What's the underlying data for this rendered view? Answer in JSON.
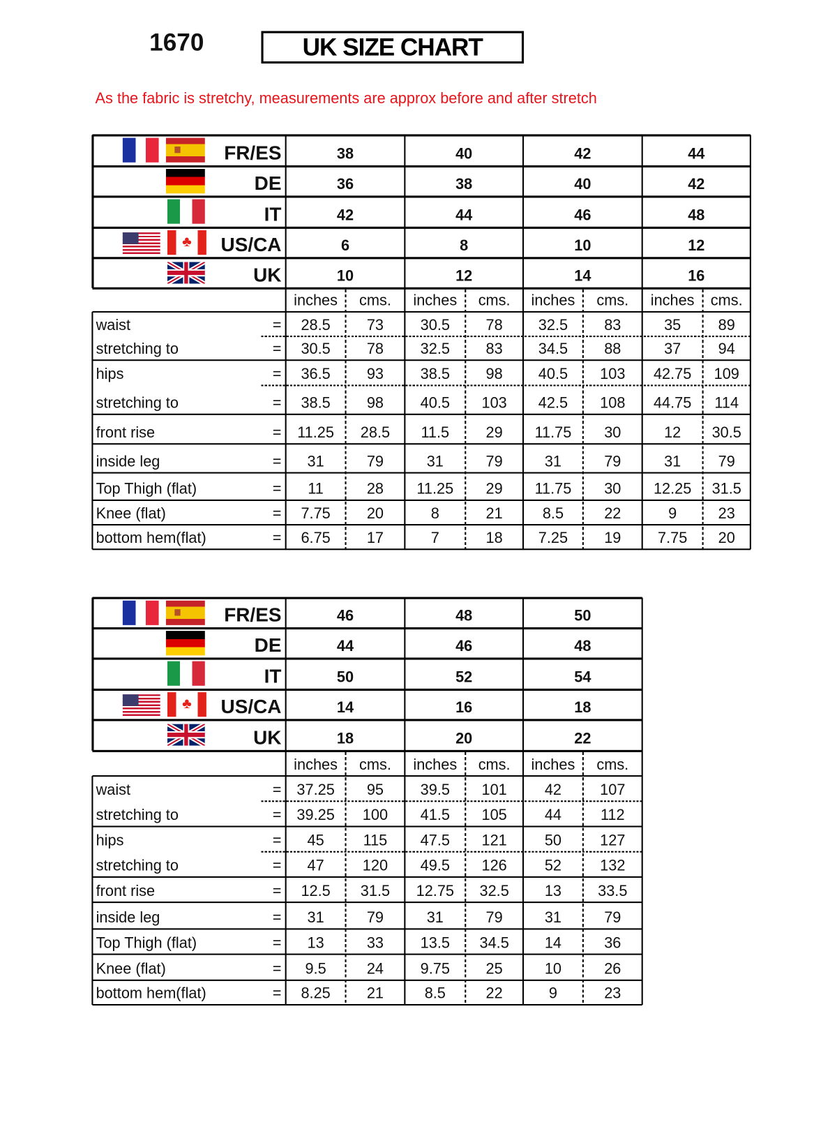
{
  "header": {
    "code": "1670",
    "title": "UK SIZE CHART",
    "note": "As the fabric is stretchy, measurements are approx before and after stretch",
    "note_color": "#e8141b"
  },
  "units": {
    "inches": "inches",
    "cms": "cms.",
    "equals": "="
  },
  "tables": [
    {
      "size_rows": [
        {
          "label": "FR/ES",
          "flags": [
            "france-flag",
            "spain-flag"
          ],
          "values": [
            "38",
            "40",
            "42",
            "44"
          ]
        },
        {
          "label": "DE",
          "flags": [
            "germany-flag"
          ],
          "values": [
            "36",
            "38",
            "40",
            "42"
          ]
        },
        {
          "label": "IT",
          "flags": [
            "italy-flag"
          ],
          "values": [
            "42",
            "44",
            "46",
            "48"
          ]
        },
        {
          "label": "US/CA",
          "flags": [
            "usa-flag",
            "canada-flag"
          ],
          "values": [
            "6",
            "8",
            "10",
            "12"
          ]
        },
        {
          "label": "UK",
          "flags": [
            "uk-flag"
          ],
          "values": [
            "10",
            "12",
            "14",
            "16"
          ]
        }
      ],
      "measurements": [
        {
          "label": "waist",
          "values": [
            [
              "28.5",
              "73"
            ],
            [
              "30.5",
              "78"
            ],
            [
              "32.5",
              "83"
            ],
            [
              "35",
              "89"
            ]
          ]
        },
        {
          "label": "stretching to",
          "values": [
            [
              "30.5",
              "78"
            ],
            [
              "32.5",
              "83"
            ],
            [
              "34.5",
              "88"
            ],
            [
              "37",
              "94"
            ]
          ]
        },
        {
          "label": "hips",
          "values": [
            [
              "36.5",
              "93"
            ],
            [
              "38.5",
              "98"
            ],
            [
              "40.5",
              "103"
            ],
            [
              "42.75",
              "109"
            ]
          ]
        },
        {
          "label": "stretching to",
          "values": [
            [
              "38.5",
              "98"
            ],
            [
              "40.5",
              "103"
            ],
            [
              "42.5",
              "108"
            ],
            [
              "44.75",
              "114"
            ]
          ]
        },
        {
          "label": "front rise",
          "values": [
            [
              "11.25",
              "28.5"
            ],
            [
              "11.5",
              "29"
            ],
            [
              "11.75",
              "30"
            ],
            [
              "12",
              "30.5"
            ]
          ]
        },
        {
          "label": "inside leg",
          "values": [
            [
              "31",
              "79"
            ],
            [
              "31",
              "79"
            ],
            [
              "31",
              "79"
            ],
            [
              "31",
              "79"
            ]
          ]
        },
        {
          "label": "Top Thigh (flat)",
          "values": [
            [
              "11",
              "28"
            ],
            [
              "11.25",
              "29"
            ],
            [
              "11.75",
              "30"
            ],
            [
              "12.25",
              "31.5"
            ]
          ]
        },
        {
          "label": "Knee (flat)",
          "values": [
            [
              "7.75",
              "20"
            ],
            [
              "8",
              "21"
            ],
            [
              "8.5",
              "22"
            ],
            [
              "9",
              "23"
            ]
          ]
        },
        {
          "label": "bottom hem(flat)",
          "values": [
            [
              "6.75",
              "17"
            ],
            [
              "7",
              "18"
            ],
            [
              "7.25",
              "19"
            ],
            [
              "7.75",
              "20"
            ]
          ]
        }
      ]
    },
    {
      "size_rows": [
        {
          "label": "FR/ES",
          "flags": [
            "france-flag",
            "spain-flag"
          ],
          "values": [
            "46",
            "48",
            "50"
          ]
        },
        {
          "label": "DE",
          "flags": [
            "germany-flag"
          ],
          "values": [
            "44",
            "46",
            "48"
          ]
        },
        {
          "label": "IT",
          "flags": [
            "italy-flag"
          ],
          "values": [
            "50",
            "52",
            "54"
          ]
        },
        {
          "label": "US/CA",
          "flags": [
            "usa-flag",
            "canada-flag"
          ],
          "values": [
            "14",
            "16",
            "18"
          ]
        },
        {
          "label": "UK",
          "flags": [
            "uk-flag"
          ],
          "values": [
            "18",
            "20",
            "22"
          ]
        }
      ],
      "measurements": [
        {
          "label": "waist",
          "values": [
            [
              "37.25",
              "95"
            ],
            [
              "39.5",
              "101"
            ],
            [
              "42",
              "107"
            ]
          ]
        },
        {
          "label": "stretching to",
          "values": [
            [
              "39.25",
              "100"
            ],
            [
              "41.5",
              "105"
            ],
            [
              "44",
              "112"
            ]
          ]
        },
        {
          "label": "hips",
          "values": [
            [
              "45",
              "115"
            ],
            [
              "47.5",
              "121"
            ],
            [
              "50",
              "127"
            ]
          ]
        },
        {
          "label": "stretching to",
          "values": [
            [
              "47",
              "120"
            ],
            [
              "49.5",
              "126"
            ],
            [
              "52",
              "132"
            ]
          ]
        },
        {
          "label": "front rise",
          "values": [
            [
              "12.5",
              "31.5"
            ],
            [
              "12.75",
              "32.5"
            ],
            [
              "13",
              "33.5"
            ]
          ]
        },
        {
          "label": "inside leg",
          "values": [
            [
              "31",
              "79"
            ],
            [
              "31",
              "79"
            ],
            [
              "31",
              "79"
            ]
          ]
        },
        {
          "label": "Top Thigh (flat)",
          "values": [
            [
              "13",
              "33"
            ],
            [
              "13.5",
              "34.5"
            ],
            [
              "14",
              "36"
            ]
          ]
        },
        {
          "label": "Knee (flat)",
          "values": [
            [
              "9.5",
              "24"
            ],
            [
              "9.75",
              "25"
            ],
            [
              "10",
              "26"
            ]
          ]
        },
        {
          "label": "bottom hem(flat)",
          "values": [
            [
              "8.25",
              "21"
            ],
            [
              "8.5",
              "22"
            ],
            [
              "9",
              "23"
            ]
          ]
        }
      ]
    }
  ]
}
